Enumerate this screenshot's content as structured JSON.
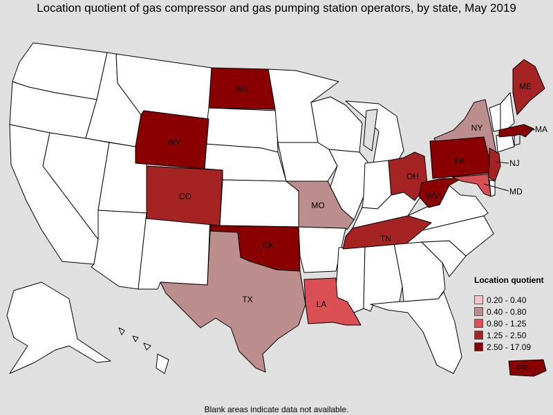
{
  "title": "Location quotient of gas compressor and gas pumping station operators, by state, May 2019",
  "footnote": "Blank areas indicate data not available.",
  "legend": {
    "title": "Location quotient",
    "items": [
      {
        "label": "0.20 - 0.40",
        "color": "#f4c3c8"
      },
      {
        "label": "0.40 - 0.80",
        "color": "#bc8d8d"
      },
      {
        "label": "0.80 - 1.25",
        "color": "#d94f54"
      },
      {
        "label": "1.25 - 2.50",
        "color": "#a52323"
      },
      {
        "label": "2.50 - 17.09",
        "color": "#8a0000"
      }
    ]
  },
  "colors": {
    "blank": "#ffffff",
    "nodata": "#e0e0e0",
    "background": "#e0e0e0"
  },
  "labels": {
    "ND": "ND",
    "WY": "WY",
    "CO": "CO",
    "OK": "OK",
    "TX": "TX",
    "LA": "LA",
    "MO": "MO",
    "TN": "TN",
    "OH": "OH",
    "WV": "WV",
    "PA": "PA",
    "NY": "NY",
    "ME": "ME",
    "MA": "MA",
    "NJ": "NJ",
    "MD": "MD",
    "PR": "PR"
  }
}
